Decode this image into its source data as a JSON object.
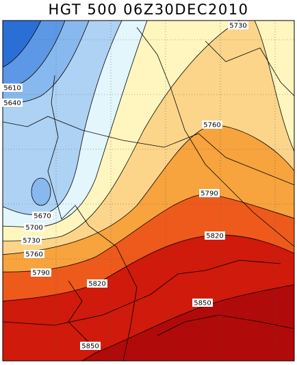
{
  "title": "HGT 500 06Z30DEC2010",
  "contour_labels": [
    "5730",
    "5610",
    "5640",
    "5760",
    "5790",
    "5670",
    "5700",
    "5730",
    "5760",
    "5790",
    "5820",
    "5820",
    "5850",
    "5850"
  ]
}
